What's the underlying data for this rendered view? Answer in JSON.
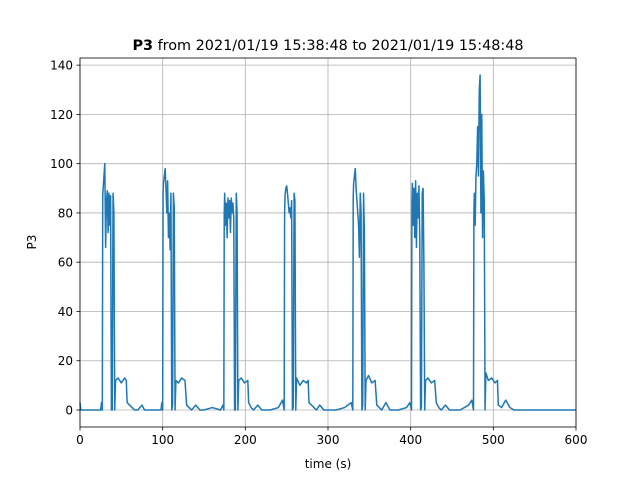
{
  "chart_data": {
    "type": "line",
    "title": {
      "bold": "P3",
      "rest": "from 2021/01/19 15:38:48 to 2021/01/19 15:48:48"
    },
    "x_label": "time (s)",
    "y_label": "P3",
    "x": [
      0,
      1,
      5,
      20,
      25,
      26,
      27,
      27.5,
      28,
      29,
      30,
      31,
      32,
      33,
      34,
      35,
      36,
      37,
      38,
      39,
      40,
      41,
      42,
      43,
      46,
      50,
      54,
      56,
      57,
      60,
      63,
      66,
      70,
      75,
      78,
      90,
      98,
      99,
      100,
      100.5,
      101,
      102,
      103,
      104,
      105,
      106,
      107,
      108,
      109,
      110,
      111,
      112,
      113,
      114,
      115,
      116,
      119,
      123,
      127,
      129,
      132,
      135,
      140,
      145,
      150,
      160,
      170,
      173,
      174,
      174.5,
      175,
      176,
      177,
      178,
      179,
      180,
      181,
      182,
      183,
      184,
      185,
      186,
      187,
      188,
      189,
      190,
      191,
      192,
      195,
      199,
      203,
      204,
      207,
      210,
      215,
      220,
      230,
      240,
      245,
      247,
      247.5,
      248,
      249,
      250,
      251,
      252,
      253,
      254,
      255,
      256,
      257,
      258,
      259,
      260,
      261,
      262,
      266,
      270,
      274,
      276,
      277,
      280,
      283,
      286,
      290,
      295,
      310,
      320,
      328,
      330,
      330.5,
      331,
      332,
      333,
      334,
      335,
      336,
      337,
      338,
      339,
      340,
      341,
      342,
      343,
      344,
      345,
      346,
      349,
      353,
      357,
      359,
      362,
      365,
      370,
      375,
      385,
      395,
      399,
      401,
      401.5,
      402,
      403,
      404,
      405,
      406,
      407,
      408,
      409,
      410,
      411,
      412,
      413,
      414,
      415,
      416,
      417,
      418,
      421,
      425,
      429,
      431,
      434,
      437,
      442,
      447,
      460,
      470,
      474,
      476,
      476.5,
      477,
      478,
      479,
      480,
      481,
      482,
      483,
      484,
      485,
      486,
      487,
      488,
      489,
      490,
      491,
      494,
      498,
      502,
      505,
      506,
      510,
      515,
      520,
      525,
      600
    ],
    "series": [
      {
        "color": "#1f77b4",
        "values": [
          3,
          0,
          0,
          0,
          0,
          3,
          0,
          87,
          90,
          95,
          100,
          66,
          85,
          89,
          72,
          88,
          75,
          87,
          0,
          0,
          88,
          80,
          0,
          12,
          13,
          11,
          13,
          12,
          3,
          2,
          1,
          0,
          0,
          2,
          0,
          0,
          0,
          3,
          0,
          88,
          92,
          95,
          98,
          90,
          80,
          93,
          70,
          80,
          65,
          88,
          0,
          2,
          88,
          82,
          0,
          12,
          11,
          13,
          12,
          2,
          1,
          0,
          2,
          0,
          0,
          1,
          0,
          2,
          0,
          80,
          88,
          75,
          84,
          70,
          86,
          78,
          85,
          72,
          86,
          80,
          84,
          78,
          0,
          0,
          88,
          80,
          0,
          12,
          13,
          11,
          12,
          3,
          1,
          0,
          2,
          0,
          0,
          1,
          4,
          0,
          80,
          87,
          90,
          91,
          88,
          84,
          80,
          82,
          78,
          85,
          0,
          1,
          88,
          85,
          0,
          13,
          10,
          12,
          11,
          12,
          3,
          2,
          1,
          0,
          2,
          0,
          0,
          1,
          3,
          0,
          86,
          92,
          95,
          98,
          90,
          85,
          80,
          75,
          62,
          88,
          80,
          0,
          2,
          88,
          72,
          0,
          12,
          14,
          11,
          12,
          2,
          1,
          0,
          3,
          0,
          0,
          1,
          3,
          0,
          84,
          92,
          75,
          90,
          70,
          93,
          66,
          88,
          78,
          91,
          70,
          0,
          1,
          88,
          90,
          60,
          0,
          12,
          13,
          11,
          12,
          3,
          1,
          0,
          2,
          0,
          0,
          2,
          4,
          0,
          80,
          88,
          75,
          95,
          100,
          115,
          95,
          130,
          136,
          80,
          120,
          70,
          97,
          85,
          0,
          15,
          12,
          13,
          11,
          12,
          2,
          1,
          4,
          1,
          0,
          0
        ]
      }
    ],
    "xlim": [
      0,
      600
    ],
    "xticks": [
      0,
      100,
      200,
      300,
      400,
      500,
      600
    ],
    "ylim": [
      -6.9,
      142.9
    ],
    "yticks": [
      0,
      20,
      40,
      60,
      80,
      100,
      120,
      140
    ],
    "grid": true
  }
}
